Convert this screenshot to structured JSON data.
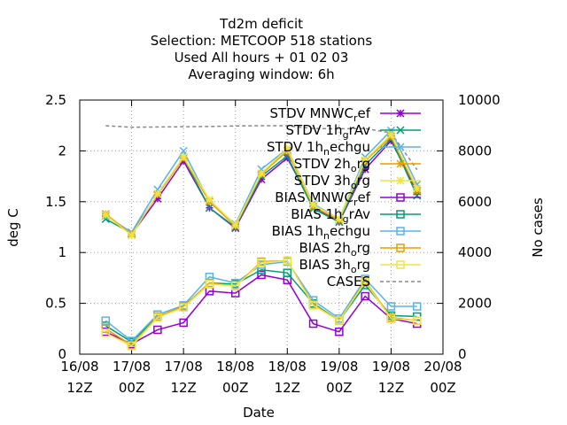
{
  "chart_data": {
    "type": "line",
    "title_lines": [
      "Td2m deficit",
      "Selection: METCOOP    518 stations",
      "Used  All hours  + 01 02 03",
      "Averaging window:  6h"
    ],
    "xlabel": "Date",
    "ylabel": "deg C",
    "y2label": "No cases",
    "x_ticks": [
      {
        "top": "16/08",
        "bottom": "12Z"
      },
      {
        "top": "17/08",
        "bottom": "00Z"
      },
      {
        "top": "17/08",
        "bottom": "12Z"
      },
      {
        "top": "18/08",
        "bottom": "00Z"
      },
      {
        "top": "18/08",
        "bottom": "12Z"
      },
      {
        "top": "19/08",
        "bottom": "00Z"
      },
      {
        "top": "19/08",
        "bottom": "12Z"
      },
      {
        "top": "20/08",
        "bottom": "00Z"
      }
    ],
    "y_ticks": [
      "0",
      "0.5",
      "1",
      "1.5",
      "2",
      "2.5"
    ],
    "y2_ticks": [
      "0",
      "2000",
      "4000",
      "6000",
      "8000",
      "10000"
    ],
    "xlim_hours": [
      0,
      84
    ],
    "ylim": [
      0,
      2.5
    ],
    "y2lim": [
      0,
      10000
    ],
    "grid": true,
    "legend_position": "top-right",
    "x_hours": [
      6,
      12,
      18,
      24,
      30,
      36,
      42,
      48,
      54,
      60,
      66,
      72,
      78
    ],
    "series": [
      {
        "name": "STDV MNWC_ref",
        "legend": [
          "STDV MNWC",
          "r",
          "ef"
        ],
        "color": "#9400d3",
        "marker": "star",
        "values": [
          1.37,
          1.18,
          1.53,
          1.9,
          1.44,
          1.24,
          1.72,
          1.93,
          1.45,
          1.3,
          1.82,
          2.1,
          1.6
        ]
      },
      {
        "name": "STDV 1h_grAv",
        "legend": [
          "STDV 1h",
          "g",
          "rAv"
        ],
        "color": "#009e73",
        "marker": "x",
        "values": [
          1.33,
          1.19,
          1.57,
          1.93,
          1.44,
          1.25,
          1.75,
          1.95,
          1.43,
          1.3,
          1.86,
          2.12,
          1.56
        ]
      },
      {
        "name": "STDV 1h_nechgu",
        "legend": [
          "STDV 1h",
          "n",
          "echgu"
        ],
        "color": "#56b4e9",
        "marker": "x",
        "values": [
          1.36,
          1.2,
          1.62,
          2.0,
          1.5,
          1.28,
          1.82,
          2.02,
          1.48,
          1.33,
          1.94,
          2.2,
          1.67
        ]
      },
      {
        "name": "STDV 2h_org",
        "legend": [
          "STDV 2h",
          "o",
          "rg"
        ],
        "color": "#e69f00",
        "marker": "star",
        "values": [
          1.38,
          1.18,
          1.57,
          1.93,
          1.5,
          1.26,
          1.77,
          2.0,
          1.45,
          1.32,
          1.9,
          2.14,
          1.61
        ]
      },
      {
        "name": "STDV 3h_org",
        "legend": [
          "STDV 3h",
          "o",
          "rg"
        ],
        "color": "#f0e442",
        "marker": "star",
        "values": [
          1.37,
          1.17,
          1.58,
          1.94,
          1.52,
          1.27,
          1.78,
          2.02,
          1.47,
          1.33,
          1.91,
          2.16,
          1.63
        ]
      },
      {
        "name": "BIAS MNWC_ref",
        "legend": [
          "BIAS MNWC",
          "r",
          "ef"
        ],
        "color": "#9400d3",
        "marker": "square",
        "values": [
          0.22,
          0.1,
          0.24,
          0.31,
          0.62,
          0.6,
          0.78,
          0.73,
          0.3,
          0.22,
          0.57,
          0.35,
          0.3
        ]
      },
      {
        "name": "BIAS 1h_grAv",
        "legend": [
          "BIAS 1h",
          "g",
          "rAv"
        ],
        "color": "#009e73",
        "marker": "square",
        "values": [
          0.28,
          0.12,
          0.37,
          0.47,
          0.7,
          0.69,
          0.83,
          0.8,
          0.5,
          0.33,
          0.68,
          0.38,
          0.37
        ]
      },
      {
        "name": "BIAS 1h_nechgu",
        "legend": [
          "BIAS 1h",
          "n",
          "echgu"
        ],
        "color": "#56b4e9",
        "marker": "square",
        "values": [
          0.33,
          0.13,
          0.39,
          0.48,
          0.76,
          0.7,
          0.88,
          0.91,
          0.53,
          0.35,
          0.74,
          0.47,
          0.47
        ]
      },
      {
        "name": "BIAS 2h_org",
        "legend": [
          "BIAS 2h",
          "o",
          "rg"
        ],
        "color": "#e69f00",
        "marker": "square",
        "values": [
          0.25,
          0.09,
          0.37,
          0.47,
          0.7,
          0.67,
          0.91,
          0.92,
          0.49,
          0.33,
          0.72,
          0.36,
          0.33
        ]
      },
      {
        "name": "BIAS 3h_org",
        "legend": [
          "BIAS 3h",
          "o",
          "rg"
        ],
        "color": "#f0e442",
        "marker": "square",
        "values": [
          0.21,
          0.08,
          0.36,
          0.46,
          0.69,
          0.67,
          0.9,
          0.92,
          0.48,
          0.33,
          0.71,
          0.35,
          0.33
        ]
      }
    ],
    "cases": {
      "name": "CASES",
      "color": "#888888",
      "x_hours": [
        6,
        12,
        18,
        24,
        30,
        36,
        42,
        48,
        54,
        60,
        66,
        72,
        78
      ],
      "values": [
        8990,
        8930,
        8940,
        8950,
        8960,
        8980,
        8990,
        8990,
        8880,
        8870,
        8880,
        8710,
        7260
      ]
    }
  }
}
